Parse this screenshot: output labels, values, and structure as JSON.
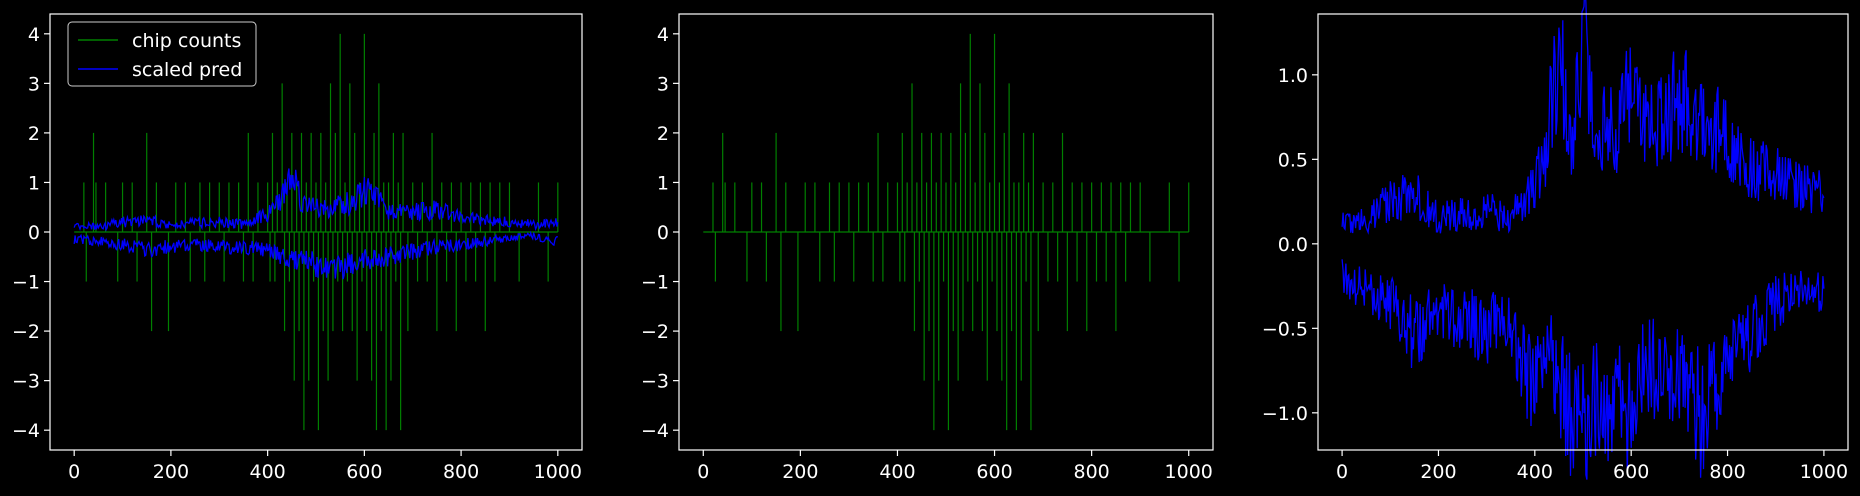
{
  "colors": {
    "background": "#000000",
    "axes": "#ffffff",
    "chip_counts": "#008000",
    "scaled_pred": "#0000ff",
    "legend_border": "#cccccc"
  },
  "chart_data": [
    {
      "type": "line",
      "panel": "left",
      "xlim": [
        -50,
        1050
      ],
      "ylim": [
        -4.4,
        4.4
      ],
      "xticks": [
        0,
        200,
        400,
        600,
        800,
        1000
      ],
      "yticks": [
        -4,
        -3,
        -2,
        -1,
        0,
        1,
        2,
        3,
        4
      ],
      "legend": {
        "placement": "upper-left",
        "entries": [
          "chip counts",
          "scaled pred"
        ]
      },
      "series": [
        {
          "name": "chip counts",
          "color": "#008000",
          "style": "vertical-spikes",
          "x": [
            0,
            20,
            25,
            40,
            45,
            65,
            80,
            90,
            100,
            110,
            120,
            130,
            140,
            150,
            160,
            170,
            185,
            195,
            210,
            220,
            230,
            240,
            250,
            260,
            270,
            280,
            290,
            300,
            310,
            320,
            330,
            340,
            350,
            360,
            370,
            380,
            390,
            400,
            405,
            410,
            415,
            420,
            425,
            430,
            435,
            440,
            445,
            450,
            455,
            460,
            465,
            470,
            475,
            480,
            485,
            490,
            495,
            500,
            505,
            510,
            515,
            520,
            525,
            530,
            535,
            540,
            545,
            550,
            555,
            560,
            565,
            570,
            575,
            580,
            585,
            590,
            595,
            600,
            605,
            610,
            615,
            620,
            625,
            630,
            635,
            640,
            645,
            650,
            655,
            660,
            665,
            670,
            675,
            680,
            690,
            700,
            710,
            720,
            730,
            740,
            750,
            760,
            770,
            780,
            790,
            800,
            810,
            820,
            830,
            840,
            850,
            860,
            870,
            880,
            900,
            920,
            940,
            960,
            980,
            1000
          ],
          "y": [
            0,
            1,
            -1,
            2,
            1,
            1,
            0,
            -1,
            1,
            0,
            1,
            -1,
            0,
            2,
            -2,
            1,
            0,
            -2,
            1,
            0,
            1,
            -1,
            0,
            1,
            -1,
            1,
            0,
            1,
            -1,
            1,
            0,
            1,
            -1,
            2,
            -1,
            1,
            0,
            1,
            -1,
            2,
            -1,
            1,
            0,
            3,
            -2,
            1,
            -1,
            2,
            -3,
            1,
            -2,
            2,
            -4,
            1,
            -3,
            2,
            -1,
            1,
            -4,
            2,
            -2,
            1,
            -3,
            3,
            -2,
            2,
            -1,
            4,
            -2,
            1,
            -1,
            3,
            -2,
            2,
            -3,
            1,
            -1,
            4,
            -2,
            1,
            -3,
            2,
            -4,
            3,
            -2,
            1,
            -4,
            1,
            -3,
            2,
            -1,
            1,
            -4,
            2,
            -2,
            1,
            -1,
            1,
            -1,
            2,
            -2,
            1,
            -1,
            1,
            -2,
            1,
            -1,
            1,
            -1,
            1,
            -2,
            1,
            -1,
            1,
            1,
            -1,
            0,
            1,
            -1,
            1
          ]
        },
        {
          "name": "scaled pred",
          "color": "#0000ff",
          "style": "band",
          "upper_knots": {
            "x": [
              0,
              50,
              100,
              150,
              200,
              250,
              300,
              350,
              400,
              425,
              450,
              475,
              500,
              525,
              550,
              575,
              600,
              625,
              650,
              700,
              750,
              800,
              850,
              900,
              950,
              1000
            ],
            "y": [
              0.12,
              0.1,
              0.2,
              0.25,
              0.15,
              0.18,
              0.2,
              0.15,
              0.35,
              0.6,
              1.1,
              0.55,
              0.5,
              0.45,
              0.55,
              0.6,
              0.85,
              0.7,
              0.45,
              0.4,
              0.45,
              0.3,
              0.25,
              0.2,
              0.15,
              0.18
            ]
          },
          "lower_knots": {
            "x": [
              0,
              50,
              100,
              150,
              200,
              250,
              300,
              350,
              400,
              425,
              450,
              475,
              500,
              525,
              550,
              575,
              600,
              625,
              650,
              700,
              750,
              800,
              850,
              900,
              950,
              1000
            ],
            "y": [
              -0.15,
              -0.18,
              -0.25,
              -0.35,
              -0.3,
              -0.25,
              -0.3,
              -0.3,
              -0.35,
              -0.45,
              -0.6,
              -0.5,
              -0.65,
              -0.75,
              -0.7,
              -0.65,
              -0.55,
              -0.6,
              -0.5,
              -0.4,
              -0.3,
              -0.25,
              -0.2,
              -0.12,
              -0.08,
              -0.2
            ]
          }
        }
      ]
    },
    {
      "type": "line",
      "panel": "middle",
      "xlim": [
        -50,
        1050
      ],
      "ylim": [
        -4.4,
        4.4
      ],
      "xticks": [
        0,
        200,
        400,
        600,
        800,
        1000
      ],
      "yticks": [
        -4,
        -3,
        -2,
        -1,
        0,
        1,
        2,
        3,
        4
      ],
      "series": [
        {
          "name": "chip counts",
          "color": "#008000",
          "style": "vertical-spikes",
          "x": [
            0,
            20,
            25,
            40,
            45,
            65,
            80,
            90,
            100,
            110,
            120,
            130,
            140,
            150,
            160,
            170,
            185,
            195,
            210,
            220,
            230,
            240,
            250,
            260,
            270,
            280,
            290,
            300,
            310,
            320,
            330,
            340,
            350,
            360,
            370,
            380,
            390,
            400,
            405,
            410,
            415,
            420,
            425,
            430,
            435,
            440,
            445,
            450,
            455,
            460,
            465,
            470,
            475,
            480,
            485,
            490,
            495,
            500,
            505,
            510,
            515,
            520,
            525,
            530,
            535,
            540,
            545,
            550,
            555,
            560,
            565,
            570,
            575,
            580,
            585,
            590,
            595,
            600,
            605,
            610,
            615,
            620,
            625,
            630,
            635,
            640,
            645,
            650,
            655,
            660,
            665,
            670,
            675,
            680,
            690,
            700,
            710,
            720,
            730,
            740,
            750,
            760,
            770,
            780,
            790,
            800,
            810,
            820,
            830,
            840,
            850,
            860,
            870,
            880,
            900,
            920,
            940,
            960,
            980,
            1000
          ],
          "y": [
            0,
            1,
            -1,
            2,
            1,
            1,
            0,
            -1,
            1,
            0,
            1,
            -1,
            0,
            2,
            -2,
            1,
            0,
            -2,
            1,
            0,
            1,
            -1,
            0,
            1,
            -1,
            1,
            0,
            1,
            -1,
            1,
            0,
            1,
            -1,
            2,
            -1,
            1,
            0,
            1,
            -1,
            2,
            -1,
            1,
            0,
            3,
            -2,
            1,
            -1,
            2,
            -3,
            1,
            -2,
            2,
            -4,
            1,
            -3,
            2,
            -1,
            1,
            -4,
            2,
            -2,
            1,
            -3,
            3,
            -2,
            2,
            -1,
            4,
            -2,
            1,
            -1,
            3,
            -2,
            2,
            -3,
            1,
            -1,
            4,
            -2,
            1,
            -3,
            2,
            -4,
            3,
            -2,
            1,
            -4,
            1,
            -3,
            2,
            -1,
            1,
            -4,
            2,
            -2,
            1,
            -1,
            1,
            -1,
            2,
            -2,
            1,
            -1,
            1,
            -2,
            1,
            -1,
            1,
            -1,
            1,
            -2,
            1,
            -1,
            1,
            1,
            -1,
            0,
            1,
            -1,
            1
          ]
        }
      ]
    },
    {
      "type": "line",
      "panel": "right",
      "xlim": [
        -50,
        1050
      ],
      "ylim": [
        -1.22,
        1.36
      ],
      "xticks": [
        0,
        200,
        400,
        600,
        800,
        1000
      ],
      "yticks": [
        -1.0,
        -0.5,
        0.0,
        0.5,
        1.0
      ],
      "series": [
        {
          "name": "scaled pred",
          "color": "#0000ff",
          "style": "band",
          "upper_knots": {
            "x": [
              0,
              50,
              100,
              150,
              200,
              250,
              300,
              350,
              400,
              425,
              450,
              475,
              500,
              525,
              550,
              575,
              600,
              625,
              650,
              700,
              750,
              800,
              850,
              900,
              950,
              1000
            ],
            "y": [
              0.12,
              0.15,
              0.25,
              0.3,
              0.15,
              0.18,
              0.2,
              0.15,
              0.35,
              0.6,
              1.15,
              0.55,
              1.25,
              0.6,
              0.7,
              0.65,
              1.0,
              0.75,
              0.7,
              0.85,
              0.75,
              0.6,
              0.45,
              0.4,
              0.35,
              0.3
            ]
          },
          "lower_knots": {
            "x": [
              0,
              50,
              100,
              150,
              200,
              250,
              300,
              350,
              400,
              425,
              450,
              475,
              500,
              525,
              550,
              575,
              600,
              625,
              650,
              700,
              750,
              800,
              850,
              900,
              950,
              1000
            ],
            "y": [
              -0.2,
              -0.28,
              -0.35,
              -0.55,
              -0.4,
              -0.45,
              -0.5,
              -0.45,
              -0.9,
              -0.55,
              -0.85,
              -1.0,
              -1.1,
              -0.9,
              -1.05,
              -0.8,
              -1.1,
              -0.7,
              -0.75,
              -0.8,
              -1.05,
              -0.6,
              -0.55,
              -0.35,
              -0.25,
              -0.3
            ]
          }
        }
      ]
    }
  ]
}
